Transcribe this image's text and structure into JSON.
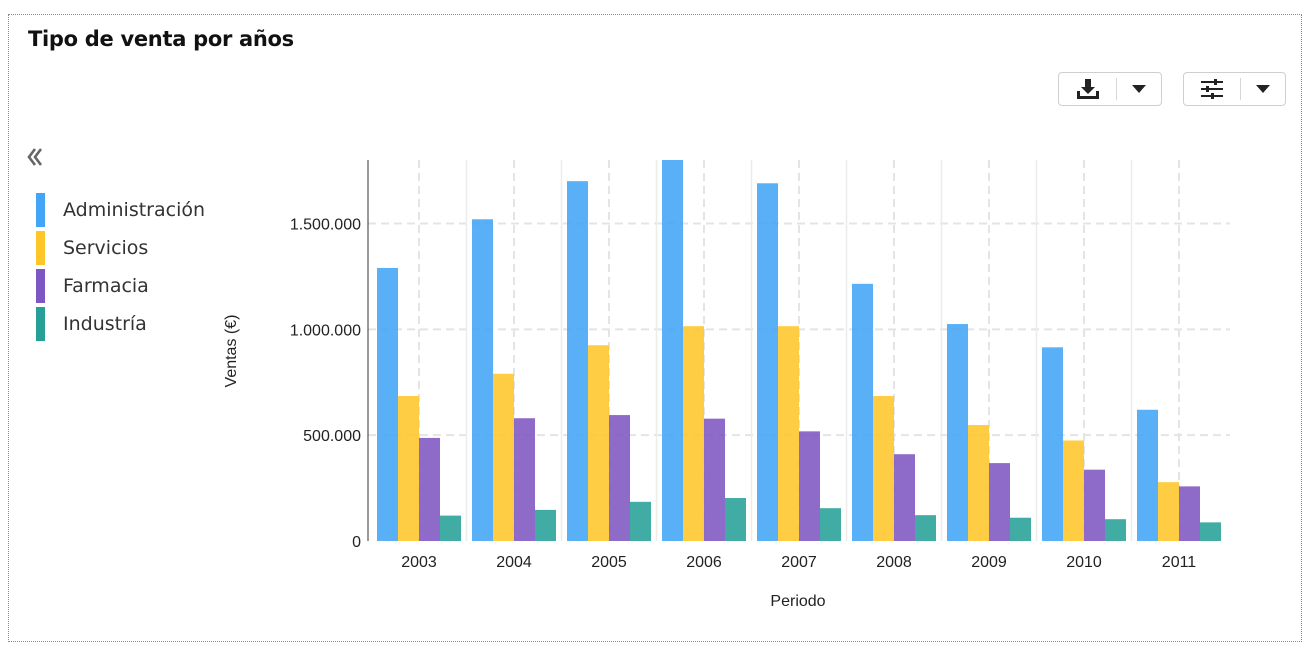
{
  "title": "Tipo de venta por años",
  "toolbar": {
    "download_icon": "download-icon",
    "settings_icon": "sliders-icon",
    "dropdown_icon": "caret-down-icon"
  },
  "legend": {
    "collapse_icon": "double-chevron-left-icon",
    "items": [
      {
        "label": "Administración",
        "color": "#42a5f5"
      },
      {
        "label": "Servicios",
        "color": "#ffc629"
      },
      {
        "label": "Farmacia",
        "color": "#7e57c2"
      },
      {
        "label": "Industría",
        "color": "#26a096"
      }
    ]
  },
  "chart_data": {
    "type": "bar",
    "xlabel": "Periodo",
    "ylabel": "Ventas (€)",
    "ylim": [
      0,
      1800000
    ],
    "yticks": [
      0,
      500000,
      1000000,
      1500000
    ],
    "ytick_labels": [
      "0",
      "500.000",
      "1.000.000",
      "1.500.000"
    ],
    "grid": true,
    "legend_position": "left",
    "categories": [
      "2003",
      "2004",
      "2005",
      "2006",
      "2007",
      "2008",
      "2009",
      "2010",
      "2011"
    ],
    "series": [
      {
        "name": "Administración",
        "color": "#42a5f5",
        "values": [
          1290000,
          1520000,
          1700000,
          1800000,
          1690000,
          1215000,
          1025000,
          915000,
          620000
        ]
      },
      {
        "name": "Servicios",
        "color": "#ffc629",
        "values": [
          685000,
          790000,
          925000,
          1015000,
          1015000,
          685000,
          548000,
          475000,
          278000
        ]
      },
      {
        "name": "Farmacia",
        "color": "#7e57c2",
        "values": [
          487000,
          580000,
          595000,
          578000,
          518000,
          410000,
          368000,
          337000,
          258000
        ]
      },
      {
        "name": "Industría",
        "color": "#26a096",
        "values": [
          120000,
          147000,
          185000,
          203000,
          155000,
          122000,
          110000,
          103000,
          88000
        ]
      }
    ]
  }
}
